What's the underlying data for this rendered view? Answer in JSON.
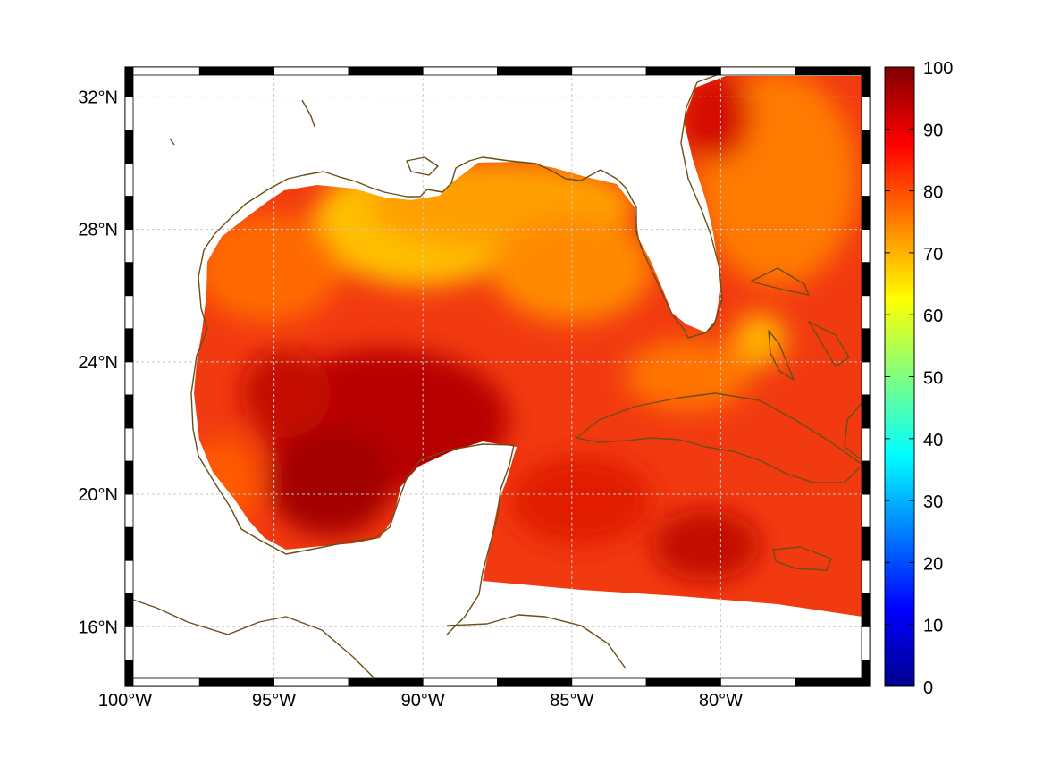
{
  "map": {
    "extent": {
      "lon_min": -100,
      "lon_max": -75,
      "lat_min": 14.2,
      "lat_max": 32.9
    },
    "x_ticks": [
      {
        "lon": -100,
        "label": "100°W"
      },
      {
        "lon": -95,
        "label": "95°W"
      },
      {
        "lon": -90,
        "label": "90°W"
      },
      {
        "lon": -85,
        "label": "85°W"
      },
      {
        "lon": -80,
        "label": "80°W"
      }
    ],
    "y_ticks": [
      {
        "lat": 32,
        "label": "32°N"
      },
      {
        "lat": 28,
        "label": "28°N"
      },
      {
        "lat": 24,
        "label": "24°N"
      },
      {
        "lat": 20,
        "label": "20°N"
      },
      {
        "lat": 16,
        "label": "16°N"
      }
    ],
    "grid": true,
    "coastline_color": "#6b4e16"
  },
  "colorbar": {
    "min": 0,
    "max": 100,
    "colormap": "jet",
    "ticks": [
      {
        "value": 100,
        "label": "100"
      },
      {
        "value": 90,
        "label": "90"
      },
      {
        "value": 80,
        "label": "80"
      },
      {
        "value": 70,
        "label": "70"
      },
      {
        "value": 60,
        "label": "60"
      },
      {
        "value": 50,
        "label": "50"
      },
      {
        "value": 40,
        "label": "40"
      },
      {
        "value": 30,
        "label": "30"
      },
      {
        "value": 20,
        "label": "20"
      },
      {
        "value": 10,
        "label": "10"
      },
      {
        "value": 0,
        "label": "0"
      }
    ]
  }
}
